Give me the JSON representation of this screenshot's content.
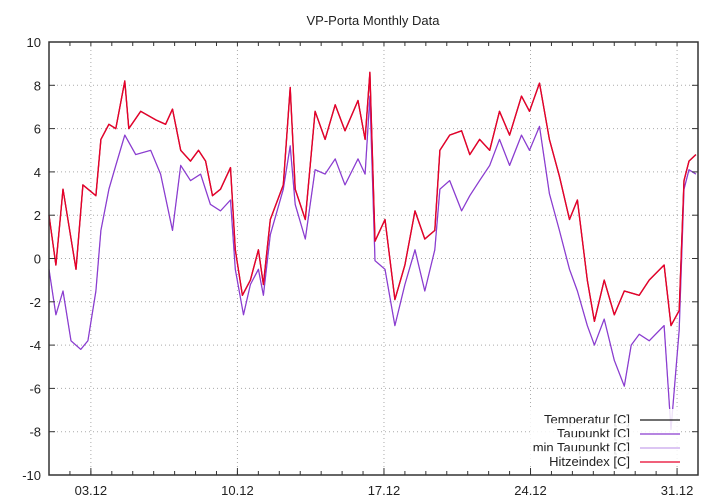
{
  "chart_data": {
    "type": "line",
    "title": "VP-Porta Monthly Data",
    "xlabel": "",
    "ylabel": "",
    "x_unit": "day of month (December)",
    "xlim": [
      1,
      32
    ],
    "ylim": [
      -10,
      10
    ],
    "yticks": [
      -10,
      -8,
      -6,
      -4,
      -2,
      0,
      2,
      4,
      6,
      8,
      10
    ],
    "xticks": [
      {
        "value": 3,
        "label": "03.12"
      },
      {
        "value": 10,
        "label": "10.12"
      },
      {
        "value": 17,
        "label": "17.12"
      },
      {
        "value": 24,
        "label": "24.12"
      },
      {
        "value": 31,
        "label": "31.12"
      }
    ],
    "grid": true,
    "legend_position": "bottom-right",
    "series": [
      {
        "name": "Temperatur [C]",
        "color": "#1a1a1a",
        "ref": "temp"
      },
      {
        "name": "Taupunkt [C]",
        "color": "#8a3ccf",
        "ref": "dew"
      },
      {
        "name": "min Taupunkt [C]",
        "color": "#c7a5ec",
        "ref": "dew"
      },
      {
        "name": "Hitzeindex [C]",
        "color": "#e8002a",
        "ref": "temp"
      }
    ],
    "temp": [
      [
        1.0,
        2.0
      ],
      [
        1.33,
        -0.3
      ],
      [
        1.67,
        3.2
      ],
      [
        2.29,
        -0.5
      ],
      [
        2.62,
        3.4
      ],
      [
        3.24,
        2.9
      ],
      [
        3.48,
        5.5
      ],
      [
        3.86,
        6.2
      ],
      [
        4.19,
        6.0
      ],
      [
        4.62,
        8.2
      ],
      [
        4.81,
        6.0
      ],
      [
        5.38,
        6.8
      ],
      [
        6.1,
        6.4
      ],
      [
        6.57,
        6.2
      ],
      [
        6.9,
        6.9
      ],
      [
        7.29,
        5.0
      ],
      [
        7.76,
        4.5
      ],
      [
        8.14,
        5.0
      ],
      [
        8.48,
        4.5
      ],
      [
        8.81,
        2.9
      ],
      [
        9.19,
        3.2
      ],
      [
        9.67,
        4.2
      ],
      [
        9.9,
        0.4
      ],
      [
        10.24,
        -1.7
      ],
      [
        10.62,
        -1.0
      ],
      [
        11.0,
        0.4
      ],
      [
        11.24,
        -1.2
      ],
      [
        11.57,
        1.8
      ],
      [
        12.19,
        3.4
      ],
      [
        12.52,
        7.9
      ],
      [
        12.76,
        3.2
      ],
      [
        13.24,
        1.8
      ],
      [
        13.71,
        6.8
      ],
      [
        14.19,
        5.5
      ],
      [
        14.67,
        7.1
      ],
      [
        15.14,
        5.9
      ],
      [
        15.76,
        7.3
      ],
      [
        16.1,
        5.5
      ],
      [
        16.33,
        8.6
      ],
      [
        16.57,
        0.8
      ],
      [
        17.05,
        1.8
      ],
      [
        17.52,
        -1.9
      ],
      [
        18.0,
        -0.3
      ],
      [
        18.48,
        2.2
      ],
      [
        18.95,
        0.9
      ],
      [
        19.43,
        1.3
      ],
      [
        19.67,
        5.0
      ],
      [
        20.14,
        5.7
      ],
      [
        20.71,
        5.9
      ],
      [
        21.1,
        4.8
      ],
      [
        21.57,
        5.5
      ],
      [
        22.05,
        5.0
      ],
      [
        22.52,
        6.8
      ],
      [
        23.0,
        5.7
      ],
      [
        23.57,
        7.5
      ],
      [
        23.95,
        6.8
      ],
      [
        24.43,
        8.1
      ],
      [
        24.9,
        5.5
      ],
      [
        25.38,
        3.8
      ],
      [
        25.86,
        1.8
      ],
      [
        26.24,
        2.7
      ],
      [
        26.71,
        -1.0
      ],
      [
        27.05,
        -2.9
      ],
      [
        27.52,
        -1.0
      ],
      [
        28.0,
        -2.6
      ],
      [
        28.48,
        -1.5
      ],
      [
        29.19,
        -1.7
      ],
      [
        29.67,
        -1.0
      ],
      [
        30.38,
        -0.3
      ],
      [
        30.71,
        -3.1
      ],
      [
        31.1,
        -2.4
      ],
      [
        31.33,
        3.6
      ],
      [
        31.57,
        4.5
      ],
      [
        31.9,
        4.8
      ]
    ],
    "dew": [
      [
        1.0,
        -0.5
      ],
      [
        1.33,
        -2.6
      ],
      [
        1.67,
        -1.5
      ],
      [
        2.05,
        -3.8
      ],
      [
        2.52,
        -4.2
      ],
      [
        2.86,
        -3.8
      ],
      [
        3.24,
        -1.5
      ],
      [
        3.48,
        1.3
      ],
      [
        3.86,
        3.2
      ],
      [
        4.19,
        4.3
      ],
      [
        4.62,
        5.7
      ],
      [
        5.14,
        4.8
      ],
      [
        5.86,
        5.0
      ],
      [
        6.33,
        3.9
      ],
      [
        6.9,
        1.3
      ],
      [
        7.29,
        4.3
      ],
      [
        7.76,
        3.6
      ],
      [
        8.24,
        3.9
      ],
      [
        8.71,
        2.5
      ],
      [
        9.19,
        2.2
      ],
      [
        9.67,
        2.7
      ],
      [
        9.9,
        -0.5
      ],
      [
        10.29,
        -2.6
      ],
      [
        10.62,
        -1.2
      ],
      [
        11.0,
        -0.5
      ],
      [
        11.24,
        -1.7
      ],
      [
        11.57,
        1.1
      ],
      [
        12.19,
        3.2
      ],
      [
        12.52,
        5.2
      ],
      [
        12.76,
        2.5
      ],
      [
        13.24,
        0.9
      ],
      [
        13.71,
        4.1
      ],
      [
        14.19,
        3.9
      ],
      [
        14.67,
        4.6
      ],
      [
        15.14,
        3.4
      ],
      [
        15.76,
        4.6
      ],
      [
        16.1,
        3.9
      ],
      [
        16.33,
        7.5
      ],
      [
        16.57,
        -0.1
      ],
      [
        17.05,
        -0.5
      ],
      [
        17.52,
        -3.1
      ],
      [
        18.0,
        -1.2
      ],
      [
        18.48,
        0.4
      ],
      [
        18.95,
        -1.5
      ],
      [
        19.43,
        0.4
      ],
      [
        19.67,
        3.2
      ],
      [
        20.14,
        3.6
      ],
      [
        20.71,
        2.2
      ],
      [
        21.1,
        2.9
      ],
      [
        21.57,
        3.6
      ],
      [
        22.05,
        4.3
      ],
      [
        22.52,
        5.5
      ],
      [
        23.0,
        4.3
      ],
      [
        23.57,
        5.7
      ],
      [
        23.95,
        5.0
      ],
      [
        24.43,
        6.1
      ],
      [
        24.9,
        3.0
      ],
      [
        25.38,
        1.3
      ],
      [
        25.86,
        -0.5
      ],
      [
        26.24,
        -1.5
      ],
      [
        26.71,
        -3.1
      ],
      [
        27.05,
        -4.0
      ],
      [
        27.52,
        -2.8
      ],
      [
        28.0,
        -4.7
      ],
      [
        28.48,
        -5.9
      ],
      [
        28.81,
        -4.0
      ],
      [
        29.19,
        -3.5
      ],
      [
        29.67,
        -3.8
      ],
      [
        30.38,
        -3.1
      ],
      [
        30.71,
        -7.9
      ],
      [
        31.1,
        -3.3
      ],
      [
        31.33,
        3.2
      ],
      [
        31.57,
        4.1
      ],
      [
        31.9,
        3.9
      ]
    ]
  }
}
